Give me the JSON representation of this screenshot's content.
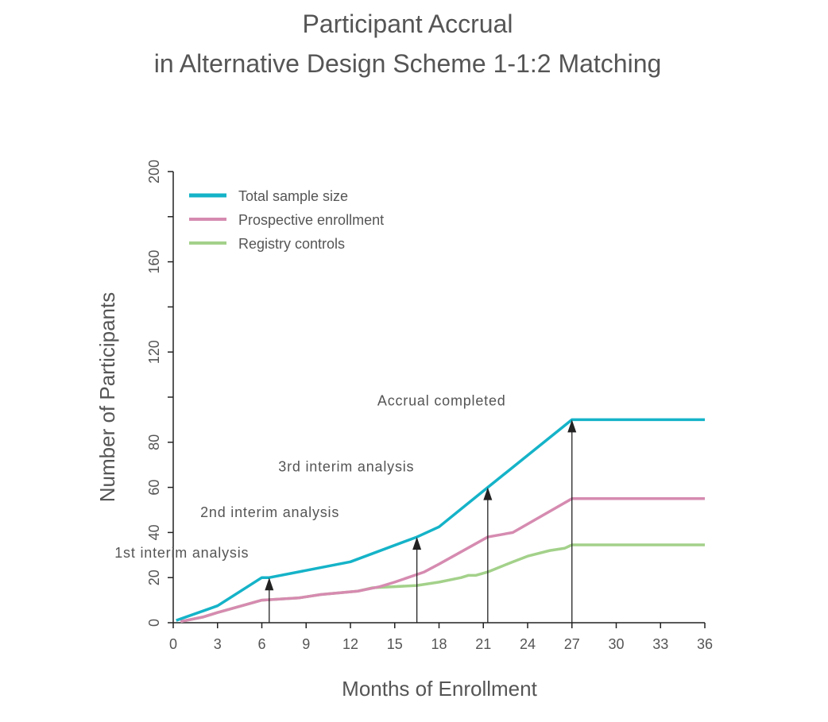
{
  "chart_data": {
    "type": "line",
    "title": [
      "Participant Accrual",
      "in Alternative Design Scheme 1-1:2 Matching"
    ],
    "xlabel": "Months of Enrollment",
    "ylabel": "Number of Participants",
    "xlim": [
      0,
      36
    ],
    "ylim": [
      0,
      200
    ],
    "xticks": [
      0,
      3,
      6,
      9,
      12,
      15,
      18,
      21,
      24,
      27,
      30,
      33,
      36
    ],
    "yticks": [
      0,
      20,
      40,
      60,
      80,
      100,
      120,
      140,
      160,
      180,
      200
    ],
    "ytick_labels": [
      "0",
      "20",
      "40",
      "60",
      "80",
      "",
      "120",
      "",
      "160",
      "",
      "200"
    ],
    "grid": false,
    "legend_position": "top-left",
    "series": [
      {
        "name": "Registry controls",
        "color": "#a3d18a",
        "x": [
          0.5,
          2,
          3,
          6,
          8.5,
          10,
          12.5,
          13.5,
          16.5,
          18,
          19.5,
          20,
          20.5,
          21.3,
          23,
          24,
          25.5,
          26.5,
          27,
          36
        ],
        "y": [
          0.5,
          2.5,
          4.5,
          10,
          11,
          12.5,
          14,
          15.5,
          16.5,
          18,
          20,
          21,
          21,
          22.5,
          27,
          29.5,
          32,
          33,
          34.5,
          34.5
        ]
      },
      {
        "name": "Prospective enrollment",
        "color": "#d68bb0",
        "x": [
          0.5,
          2,
          3,
          6,
          8.5,
          10,
          12.5,
          14,
          15,
          17,
          18,
          21.3,
          23,
          27,
          36
        ],
        "y": [
          0.5,
          2.5,
          4.5,
          10,
          11,
          12.5,
          14,
          16,
          18,
          22.5,
          26,
          38,
          40,
          55,
          55
        ]
      },
      {
        "name": "Total sample size",
        "color": "#15b3c8",
        "x": [
          0.2,
          3,
          6,
          6.5,
          12,
          16.5,
          18,
          21.3,
          27,
          36
        ],
        "y": [
          1,
          7.5,
          20,
          20,
          27,
          38,
          42.5,
          60,
          90,
          90
        ]
      }
    ],
    "legend_order": [
      "Total sample size",
      "Prospective enrollment",
      "Registry controls"
    ],
    "annotations": [
      {
        "text": "1st interim analysis",
        "x": 6.5,
        "y": 20
      },
      {
        "text": "2nd interim analysis",
        "x": 16.5,
        "y": 38
      },
      {
        "text": "3rd interim analysis",
        "x": 21.3,
        "y": 60
      },
      {
        "text": "Accrual completed",
        "x": 27,
        "y": 90
      }
    ]
  }
}
